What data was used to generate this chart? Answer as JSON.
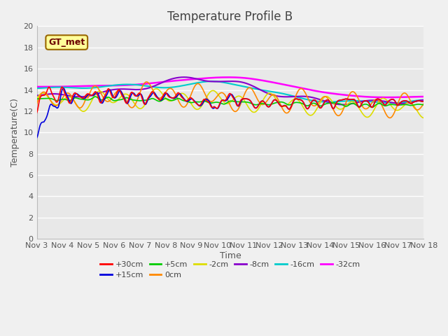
{
  "title": "Temperature Profile B",
  "xlabel": "Time",
  "ylabel": "Temperature(C)",
  "ylim": [
    0,
    20
  ],
  "xlim": [
    0,
    15
  ],
  "xtick_labels": [
    "Nov 3",
    "Nov 4",
    "Nov 5",
    "Nov 6",
    "Nov 7",
    "Nov 8",
    "Nov 9",
    "Nov 10",
    "Nov 11",
    "Nov 12",
    "Nov 13",
    "Nov 14",
    "Nov 15",
    "Nov 16",
    "Nov 17",
    "Nov 18"
  ],
  "legend_entries": [
    "+30cm",
    "+15cm",
    "+5cm",
    "0cm",
    "-2cm",
    "-8cm",
    "-16cm",
    "-32cm"
  ],
  "colors": {
    "+30cm": "#ff0000",
    "+15cm": "#0000dd",
    "+5cm": "#00cc00",
    "0cm": "#ff8800",
    "-2cm": "#dddd00",
    "-8cm": "#8800cc",
    "-16cm": "#00cccc",
    "-32cm": "#ff00ff"
  },
  "GT_met_box_color": "#ffff99",
  "GT_met_border_color": "#996600",
  "background_color": "#e8e8e8",
  "grid_color": "#ffffff",
  "title_fontsize": 12,
  "axis_fontsize": 9,
  "tick_fontsize": 8
}
